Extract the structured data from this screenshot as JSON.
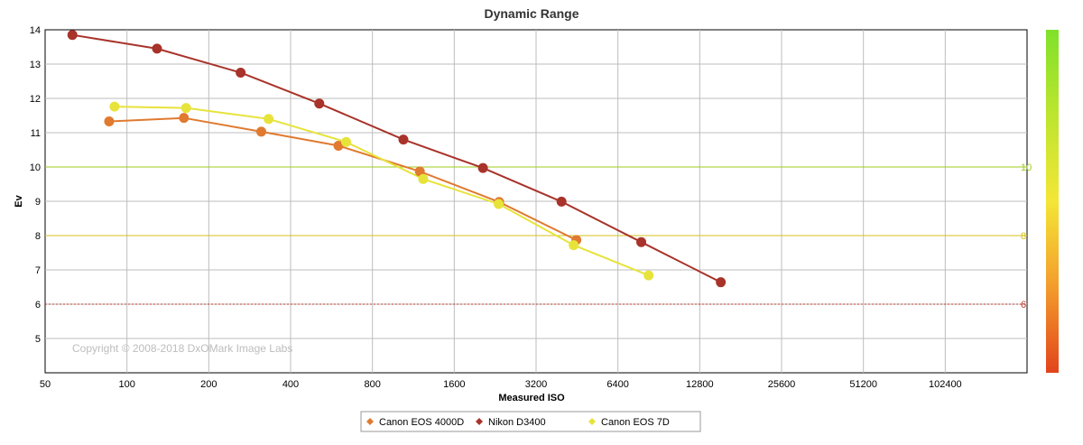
{
  "chart_data": {
    "type": "line",
    "title": "Dynamic Range",
    "xlabel": "Measured ISO",
    "ylabel": "Ev",
    "x_scale": "log2",
    "x_ticks": [
      "50",
      "100",
      "200",
      "400",
      "800",
      "1600",
      "3200",
      "6400",
      "12800",
      "25600",
      "51200",
      "102400"
    ],
    "y_ticks": [
      "5",
      "6",
      "7",
      "8",
      "9",
      "10",
      "11",
      "12",
      "13",
      "14"
    ],
    "xlim": [
      50,
      204800
    ],
    "ylim": [
      4,
      14
    ],
    "grid": true,
    "reference_lines": [
      {
        "value": 10,
        "label": "10",
        "color": "#9ccc1c"
      },
      {
        "value": 8,
        "label": "8",
        "color": "#d7c21b"
      },
      {
        "value": 6,
        "label": "6",
        "color": "#c0392b"
      }
    ],
    "legend_position": "bottom",
    "series": [
      {
        "name": "Canon EOS 4000D",
        "color": "#e07a30",
        "x": [
          86,
          162,
          312,
          600,
          1195,
          2340,
          4500
        ],
        "y": [
          11.33,
          11.43,
          11.03,
          10.62,
          9.87,
          8.98,
          7.87
        ]
      },
      {
        "name": "Nikon D3400",
        "color": "#a8332a",
        "x": [
          63,
          129,
          262,
          510,
          1040,
          2040,
          3970,
          7800,
          15300
        ],
        "y": [
          13.85,
          13.45,
          12.75,
          11.85,
          10.8,
          9.97,
          8.99,
          7.81,
          6.64
        ]
      },
      {
        "name": "Canon EOS 7D",
        "color": "#e7e33b",
        "x": [
          90,
          165,
          332,
          640,
          1230,
          2330,
          4400,
          8300
        ],
        "y": [
          11.76,
          11.72,
          11.4,
          10.73,
          9.65,
          8.92,
          7.72,
          6.84
        ]
      }
    ]
  },
  "copyright": "Copyright © 2008-2018 DxOMark Image Labs"
}
